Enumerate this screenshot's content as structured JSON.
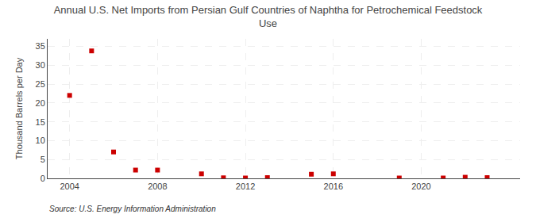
{
  "chart_data": {
    "type": "scatter",
    "title": "Annual U.S. Net Imports from Persian Gulf Countries of Naphtha for Petrochemical Feedstock\nUse",
    "y_label": "Thousand Barrels per Day",
    "annotations": [
      "Source: U.S. Energy Information Administration"
    ],
    "x": [
      2004,
      2005,
      2006,
      2007,
      2008,
      2010,
      2011,
      2012,
      2013,
      2015,
      2016,
      2019,
      2021,
      2022,
      2023
    ],
    "values": [
      22.0,
      33.8,
      7.0,
      2.2,
      2.2,
      1.2,
      0.15,
      0.1,
      0.2,
      1.1,
      1.2,
      0.1,
      0.1,
      0.3,
      0.2
    ],
    "color": "#cc0000",
    "marker": "square",
    "xlim": [
      2003.0,
      2024.5
    ],
    "xticks": [
      2004,
      2008,
      2012,
      2016,
      2020
    ],
    "ylim": [
      0,
      37
    ],
    "yticks": [
      0,
      5,
      10,
      15,
      20,
      25,
      30,
      35
    ],
    "grid": true
  }
}
